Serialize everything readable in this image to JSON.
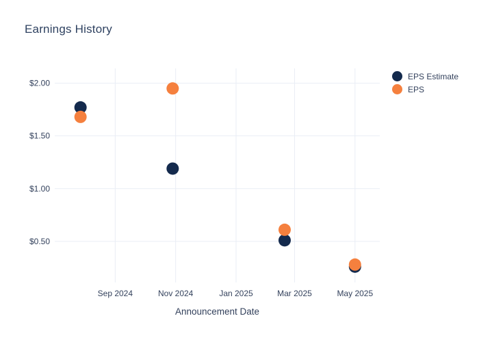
{
  "chart_data": {
    "type": "scatter",
    "title": "Earnings History",
    "xlabel": "Announcement Date",
    "ylabel": "",
    "x_type": "date",
    "x_range": [
      "2024-07-02",
      "2025-05-26"
    ],
    "y_range": [
      0.11,
      2.14
    ],
    "grid": true,
    "legend_position": "top-right",
    "x_ticks": [
      {
        "date": "2024-09-01",
        "label": "Sep 2024"
      },
      {
        "date": "2024-11-01",
        "label": "Nov 2024"
      },
      {
        "date": "2025-01-01",
        "label": "Jan 2025"
      },
      {
        "date": "2025-03-01",
        "label": "Mar 2025"
      },
      {
        "date": "2025-05-01",
        "label": "May 2025"
      }
    ],
    "y_ticks": [
      {
        "value": 0.5,
        "label": "$0.50"
      },
      {
        "value": 1.0,
        "label": "$1.00"
      },
      {
        "value": 1.5,
        "label": "$1.50"
      },
      {
        "value": 2.0,
        "label": "$2.00"
      }
    ],
    "marker_diameter": 18,
    "series": [
      {
        "name": "EPS Estimate",
        "color": "#142a4d",
        "points": [
          {
            "date": "2024-07-28",
            "value": 1.77
          },
          {
            "date": "2024-10-29",
            "value": 1.19
          },
          {
            "date": "2025-02-19",
            "value": 0.51
          },
          {
            "date": "2025-05-01",
            "value": 0.26
          }
        ]
      },
      {
        "name": "EPS",
        "color": "#f5803e",
        "points": [
          {
            "date": "2024-07-28",
            "value": 1.68
          },
          {
            "date": "2024-10-29",
            "value": 1.95
          },
          {
            "date": "2025-02-19",
            "value": 0.61
          },
          {
            "date": "2025-05-01",
            "value": 0.28
          }
        ]
      }
    ]
  },
  "colors": {
    "background": "#ffffff",
    "grid": "#e9edf5",
    "tick_text": "#33415c",
    "title_text": "#2e4160"
  }
}
